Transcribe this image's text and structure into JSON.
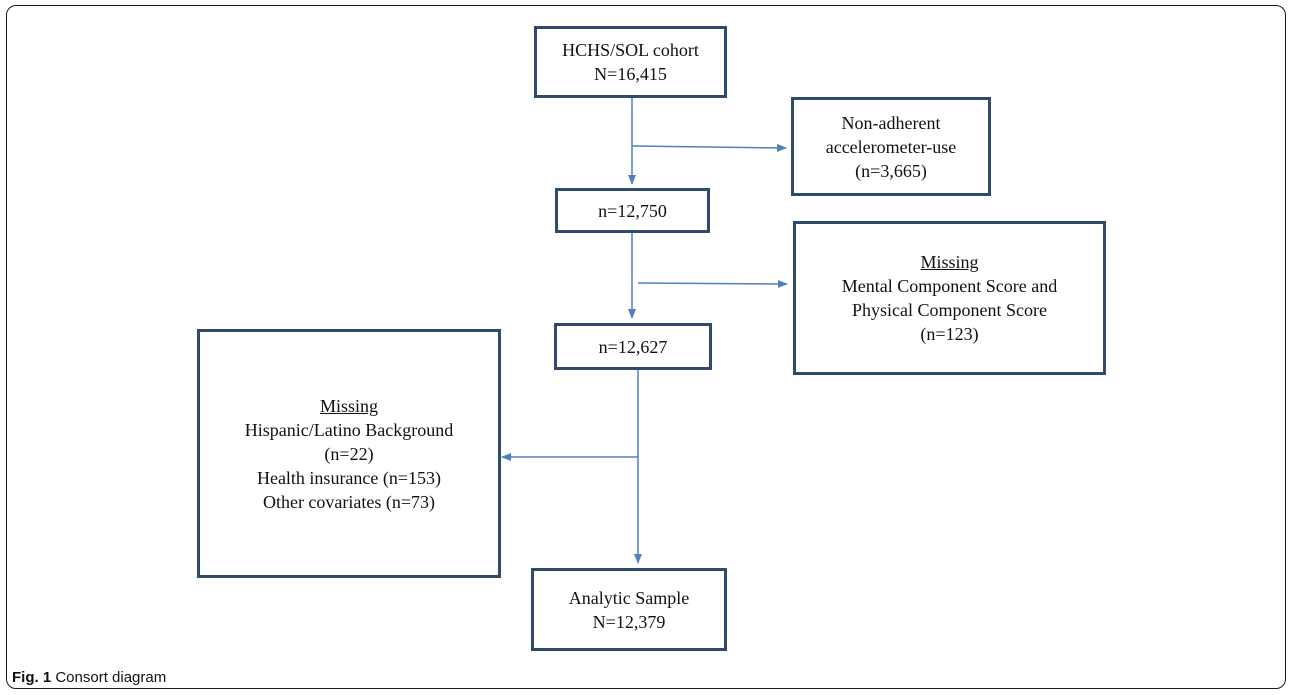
{
  "boxes": {
    "cohort": {
      "line1": "HCHS/SOL cohort",
      "line2": "N=16,415"
    },
    "excl_accelerometer": {
      "line1": "Non-adherent",
      "line2": "accelerometer-use",
      "line3": "(n=3,665)"
    },
    "after_accelerometer": {
      "text": "n=12,750"
    },
    "excl_scores": {
      "heading": "Missing",
      "line1": "Mental Component Score and",
      "line2": "Physical Component Score",
      "line3": "(n=123)"
    },
    "after_scores": {
      "text": "n=12,627"
    },
    "excl_covariates": {
      "heading": "Missing",
      "line1": "Hispanic/Latino Background",
      "line2": "(n=22)",
      "line3": "Health insurance (n=153)",
      "line4": "Other covariates (n=73)"
    },
    "analytic": {
      "line1": "Analytic Sample",
      "line2": "N=12,379"
    }
  },
  "caption": {
    "label": "Fig. 1",
    "text": "Consort diagram"
  },
  "colors": {
    "box_border": "#2f4a6b",
    "arrow": "#4f81bd"
  }
}
